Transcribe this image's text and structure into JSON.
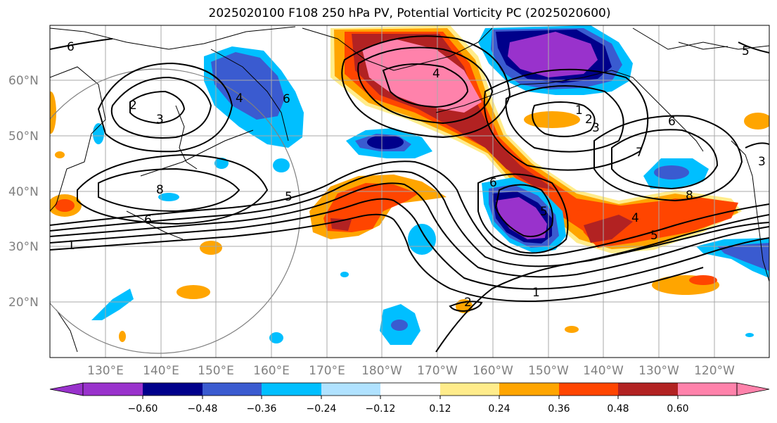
{
  "title": "2025020100 F108 250 hPa PV, Potential Vorticity PC (2025020600)",
  "map": {
    "lat_labels": [
      "60°N",
      "50°N",
      "40°N",
      "30°N",
      "20°N"
    ],
    "lon_labels": [
      "130°E",
      "140°E",
      "150°E",
      "160°E",
      "170°E",
      "180°W",
      "170°W",
      "160°W",
      "150°W",
      "140°W",
      "130°W",
      "120°W"
    ],
    "contour_labels": [
      "6",
      "4",
      "2",
      "3",
      "4",
      "6",
      "1",
      "2",
      "3",
      "6",
      "7",
      "5",
      "8",
      "5",
      "6",
      "1",
      "2",
      "1",
      "4",
      "5",
      "3",
      "6",
      "8",
      "5"
    ]
  },
  "colorbar": {
    "ticks": [
      "−0.60",
      "−0.48",
      "−0.36",
      "−0.24",
      "−0.12",
      "0.12",
      "0.24",
      "0.36",
      "0.48",
      "0.60"
    ],
    "colors": [
      "#9932cc",
      "#00008b",
      "#3a5bd0",
      "#00bfff",
      "#b0e2ff",
      "#ffffff",
      "#ffec8b",
      "#ffa500",
      "#ff4500",
      "#b22222",
      "#ff82ab"
    ]
  }
}
